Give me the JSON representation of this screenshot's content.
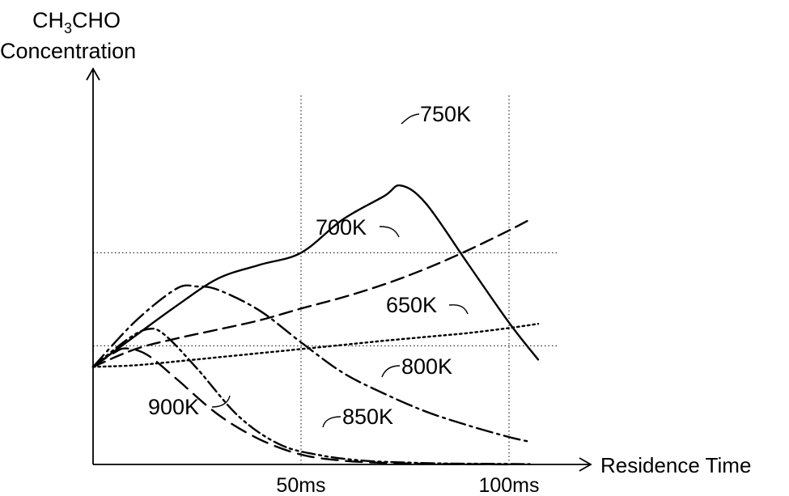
{
  "chart_data": {
    "type": "line",
    "ylabel_line1_pre": "CH",
    "ylabel_line1_sub": "3",
    "ylabel_line1_post": "CHO",
    "ylabel_line2": "Concentration",
    "xlabel": "Residence Time",
    "x_ticks": [
      {
        "value": 50,
        "label": "50ms"
      },
      {
        "value": 100,
        "label": "100ms"
      }
    ],
    "xlim": [
      0,
      107
    ],
    "ylim": [
      0,
      100
    ],
    "grid": {
      "vertical_at_x": [
        50,
        100
      ],
      "horizontal_at_y": [
        66.4,
        37.2
      ]
    },
    "series": [
      {
        "name": "750K",
        "style": "solid",
        "x": [
          0,
          10,
          20,
          30,
          40,
          50,
          60,
          70,
          74,
          80,
          90,
          100,
          107
        ],
        "y": [
          30.6,
          40.2,
          49.7,
          58.3,
          62.6,
          66.4,
          76.8,
          84.2,
          87.5,
          81.9,
          63.2,
          44.5,
          32.9
        ]
      },
      {
        "name": "700K",
        "style": "long-dash",
        "x": [
          0,
          10,
          20,
          30,
          40,
          50,
          60,
          70,
          80,
          90,
          100,
          105
        ],
        "y": [
          30.6,
          36.1,
          39.5,
          42.3,
          45.2,
          48.9,
          52.4,
          56.5,
          61.4,
          67.1,
          73.4,
          76.8
        ]
      },
      {
        "name": "650K",
        "style": "dotted",
        "x": [
          0,
          10,
          20,
          30,
          40,
          50,
          60,
          70,
          80,
          90,
          100,
          107
        ],
        "y": [
          30.6,
          31.1,
          32.3,
          33.6,
          34.9,
          36.2,
          37.5,
          38.8,
          40.0,
          41.2,
          42.8,
          44.1
        ]
      },
      {
        "name": "800K",
        "style": "dash-dot",
        "x": [
          0,
          10,
          20,
          25,
          30,
          40,
          50,
          60,
          70,
          80,
          90,
          100,
          105
        ],
        "y": [
          30.6,
          44.7,
          55.1,
          55.8,
          54.8,
          48.3,
          38.3,
          28.8,
          22.2,
          16.6,
          12.3,
          8.6,
          7.1
        ]
      },
      {
        "name": "850K",
        "style": "dash-dot-dot",
        "x": [
          0,
          8,
          13,
          17,
          25,
          35,
          45,
          55,
          65,
          75,
          85,
          95,
          105
        ],
        "y": [
          30.6,
          39.0,
          42.4,
          40.9,
          30.1,
          15.1,
          6.2,
          2.8,
          1.2,
          0.6,
          0.3,
          0.2,
          0.1
        ]
      },
      {
        "name": "900K",
        "style": "dash",
        "x": [
          0,
          5,
          8,
          13,
          20,
          30,
          40,
          50,
          60,
          70,
          80,
          90,
          100
        ],
        "y": [
          30.6,
          35.0,
          36.4,
          34.4,
          26.9,
          15.7,
          7.9,
          3.1,
          1.2,
          0.5,
          0.2,
          0.1,
          0.0
        ]
      }
    ],
    "annotations": [
      {
        "series": "750K",
        "text": "750K"
      },
      {
        "series": "700K",
        "text": "700K"
      },
      {
        "series": "650K",
        "text": "650K"
      },
      {
        "series": "800K",
        "text": "800K"
      },
      {
        "series": "850K",
        "text": "850K"
      },
      {
        "series": "900K",
        "text": "900K"
      }
    ]
  }
}
